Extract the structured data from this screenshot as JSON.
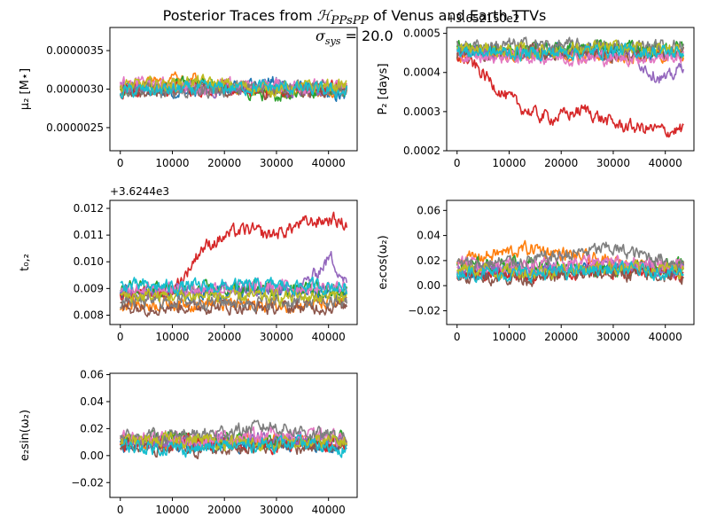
{
  "figure": {
    "title_prefix": "Posterior Traces from ",
    "title_model": "ℋ",
    "title_model_sub": "PPsPP",
    "title_suffix": " of Venus and Earth TTVs",
    "sigma_symbol": "σ",
    "sigma_sub": "sys",
    "sigma_value": " = 20.0"
  },
  "chart_data": [
    {
      "type": "line",
      "ylabel": "μ₂ [M⋆]",
      "ylim": [
        2.2e-06,
        3.8e-06
      ],
      "xlim": [
        -2000,
        45500
      ],
      "xticks": [
        0,
        10000,
        20000,
        30000,
        40000
      ],
      "yticks": [
        2.5e-06,
        3e-06,
        3.5e-06
      ],
      "ytick_labels": [
        "0.0000025",
        "0.0000030",
        "0.0000035"
      ],
      "offset_text": "",
      "trace_length": 43500,
      "series": [
        {
          "color": "#1f77b4",
          "values": [
            3.02e-06,
            2.95e-06,
            3.1e-06,
            2.88e-06
          ]
        },
        {
          "color": "#ff7f0e",
          "values": [
            3.05e-06,
            3.12e-06,
            2.98e-06,
            3e-06
          ]
        },
        {
          "color": "#2ca02c",
          "values": [
            2.98e-06,
            3.06e-06,
            2.92e-06,
            3.03e-06
          ]
        },
        {
          "color": "#d62728",
          "values": [
            3e-06,
            3.01e-06,
            2.96e-06,
            3.04e-06
          ]
        },
        {
          "color": "#9467bd",
          "values": [
            3.04e-06,
            3e-06,
            3.02e-06,
            2.99e-06
          ]
        },
        {
          "color": "#8c564b",
          "values": [
            2.95e-06,
            3.01e-06,
            2.97e-06,
            3.02e-06
          ]
        },
        {
          "color": "#e377c2",
          "values": [
            3.08e-06,
            3.03e-06,
            3.06e-06,
            3.01e-06
          ]
        },
        {
          "color": "#7f7f7f",
          "values": [
            2.99e-06,
            2.97e-06,
            3.04e-06,
            3e-06
          ]
        },
        {
          "color": "#bcbd22",
          "values": [
            3.03e-06,
            3.09e-06,
            3e-06,
            3.05e-06
          ]
        },
        {
          "color": "#17becf",
          "values": [
            2.97e-06,
            3e-06,
            3.03e-06,
            2.96e-06
          ]
        }
      ]
    },
    {
      "type": "line",
      "ylabel": "P₂ [days]",
      "ylim": [
        0.0002,
        0.000515
      ],
      "xlim": [
        -2000,
        45500
      ],
      "xticks": [
        0,
        10000,
        20000,
        30000,
        40000
      ],
      "yticks": [
        0.0002,
        0.0003,
        0.0004,
        0.0005
      ],
      "ytick_labels": [
        "0.0002",
        "0.0003",
        "0.0004",
        "0.0005"
      ],
      "offset_text": "+3.652150e2",
      "trace_length": 43500,
      "series": [
        {
          "color": "#1f77b4",
          "values": [
            0.000455,
            0.00045,
            0.000458,
            0.000452
          ]
        },
        {
          "color": "#ff7f0e",
          "values": [
            0.00044,
            0.000446,
            0.000442,
            0.000444
          ]
        },
        {
          "color": "#2ca02c",
          "values": [
            0.000462,
            0.000458,
            0.000465,
            0.00046
          ]
        },
        {
          "color": "#d62728",
          "values": [
            0.000445,
            0.00042,
            0.00038,
            0.00034,
            0.00031,
            0.00029,
            0.000285,
            0.000295,
            0.000305,
            0.00028,
            0.000265,
            0.00026,
            0.000255,
            0.00025,
            0.000255
          ]
        },
        {
          "color": "#9467bd",
          "values": [
            0.00045,
            0.000452,
            0.000449,
            0.000451,
            0.000448,
            0.00045,
            0.000452,
            0.000449,
            0.00045,
            0.000451,
            0.000447,
            0.00044,
            0.0004,
            0.00038,
            0.00042
          ]
        },
        {
          "color": "#8c564b",
          "values": [
            0.000448,
            0.000452,
            0.000446,
            0.00045
          ]
        },
        {
          "color": "#e377c2",
          "values": [
            0.000438,
            0.000441,
            0.000436,
            0.00044
          ]
        },
        {
          "color": "#7f7f7f",
          "values": [
            0.000468,
            0.00047,
            0.000466,
            0.000469
          ]
        },
        {
          "color": "#bcbd22",
          "values": [
            0.00046,
            0.000455,
            0.000462,
            0.000458
          ]
        },
        {
          "color": "#17becf",
          "values": [
            0.000452,
            0.000449,
            0.000455,
            0.000451
          ]
        }
      ]
    },
    {
      "type": "line",
      "ylabel": "t₀,₂",
      "ylim": [
        0.00765,
        0.0123
      ],
      "xlim": [
        -2000,
        45500
      ],
      "xticks": [
        0,
        10000,
        20000,
        30000,
        40000
      ],
      "yticks": [
        0.008,
        0.009,
        0.01,
        0.011,
        0.012
      ],
      "ytick_labels": [
        "0.008",
        "0.009",
        "0.010",
        "0.011",
        "0.012"
      ],
      "offset_text": "+3.6244e3",
      "trace_length": 43500,
      "series": [
        {
          "color": "#1f77b4",
          "values": [
            0.00885,
            0.0088,
            0.0089,
            0.00884
          ]
        },
        {
          "color": "#ff7f0e",
          "values": [
            0.0084,
            0.00845,
            0.00838,
            0.00842
          ]
        },
        {
          "color": "#2ca02c",
          "values": [
            0.009,
            0.00896,
            0.00902,
            0.00898
          ]
        },
        {
          "color": "#d62728",
          "values": [
            0.0088,
            0.00875,
            0.00885,
            0.0088,
            0.0095,
            0.0105,
            0.0108,
            0.0111,
            0.0112,
            0.011,
            0.0111,
            0.0114,
            0.0115,
            0.0116,
            0.0114
          ]
        },
        {
          "color": "#9467bd",
          "values": [
            0.0089,
            0.00888,
            0.00892,
            0.0089,
            0.00889,
            0.00891,
            0.0089,
            0.00888,
            0.00892,
            0.0089,
            0.00889,
            0.009,
            0.0095,
            0.0102,
            0.0092
          ]
        },
        {
          "color": "#8c564b",
          "values": [
            0.0083,
            0.00835,
            0.00828,
            0.00833
          ]
        },
        {
          "color": "#e377c2",
          "values": [
            0.00905,
            0.009,
            0.00908,
            0.00903
          ]
        },
        {
          "color": "#7f7f7f",
          "values": [
            0.0085,
            0.00855,
            0.00848,
            0.00852
          ]
        },
        {
          "color": "#bcbd22",
          "values": [
            0.0087,
            0.00874,
            0.00868,
            0.00872
          ]
        },
        {
          "color": "#17becf",
          "values": [
            0.0091,
            0.00905,
            0.00912,
            0.00907
          ]
        }
      ]
    },
    {
      "type": "line",
      "ylabel": "e₂cos(ω₂)",
      "ylim": [
        -0.031,
        0.068
      ],
      "xlim": [
        -2000,
        45500
      ],
      "xticks": [
        0,
        10000,
        20000,
        30000,
        40000
      ],
      "yticks": [
        -0.02,
        0,
        0.02,
        0.04,
        0.06
      ],
      "ytick_labels": [
        "−0.02",
        "0.00",
        "0.02",
        "0.04",
        "0.06"
      ],
      "offset_text": "",
      "trace_length": 43500,
      "series": [
        {
          "color": "#1f77b4",
          "values": [
            0.012,
            0.01,
            0.014,
            0.011
          ]
        },
        {
          "color": "#ff7f0e",
          "values": [
            0.02,
            0.03,
            0.018,
            0.015
          ]
        },
        {
          "color": "#2ca02c",
          "values": [
            0.015,
            0.018,
            0.012,
            0.016
          ]
        },
        {
          "color": "#d62728",
          "values": [
            0.01,
            0.008,
            0.012,
            0.009
          ]
        },
        {
          "color": "#9467bd",
          "values": [
            0.014,
            0.012,
            0.016,
            0.013
          ]
        },
        {
          "color": "#8c564b",
          "values": [
            0.008,
            0.006,
            0.01,
            0.007
          ]
        },
        {
          "color": "#e377c2",
          "values": [
            0.018,
            0.016,
            0.02,
            0.017
          ]
        },
        {
          "color": "#7f7f7f",
          "values": [
            0.016,
            0.02,
            0.03,
            0.018
          ]
        },
        {
          "color": "#bcbd22",
          "values": [
            0.013,
            0.011,
            0.015,
            0.012
          ]
        },
        {
          "color": "#17becf",
          "values": [
            0.011,
            0.009,
            0.013,
            0.01
          ]
        }
      ]
    },
    {
      "type": "line",
      "ylabel": "e₂sin(ω₂)",
      "ylim": [
        -0.031,
        0.061
      ],
      "xlim": [
        -2000,
        45500
      ],
      "xticks": [
        0,
        10000,
        20000,
        30000,
        40000
      ],
      "yticks": [
        -0.02,
        0,
        0.02,
        0.04,
        0.06
      ],
      "ytick_labels": [
        "−0.02",
        "0.00",
        "0.02",
        "0.04",
        "0.06"
      ],
      "offset_text": "",
      "trace_length": 43500,
      "series": [
        {
          "color": "#1f77b4",
          "values": [
            0.008,
            0.006,
            0.01,
            0.007
          ]
        },
        {
          "color": "#ff7f0e",
          "values": [
            0.01,
            0.008,
            0.012,
            0.009
          ]
        },
        {
          "color": "#2ca02c",
          "values": [
            0.012,
            0.014,
            0.01,
            0.013
          ]
        },
        {
          "color": "#d62728",
          "values": [
            0.009,
            0.011,
            0.007,
            0.01
          ]
        },
        {
          "color": "#9467bd",
          "values": [
            0.011,
            0.009,
            0.013,
            0.01
          ]
        },
        {
          "color": "#8c564b",
          "values": [
            0.006,
            0.004,
            0.008,
            0.005
          ]
        },
        {
          "color": "#e377c2",
          "values": [
            0.014,
            0.012,
            0.016,
            0.013
          ]
        },
        {
          "color": "#7f7f7f",
          "values": [
            0.013,
            0.015,
            0.022,
            0.012
          ]
        },
        {
          "color": "#bcbd22",
          "values": [
            0.01,
            0.012,
            0.008,
            0.011
          ]
        },
        {
          "color": "#17becf",
          "values": [
            0.007,
            0.005,
            0.009,
            0.006
          ]
        }
      ]
    }
  ]
}
